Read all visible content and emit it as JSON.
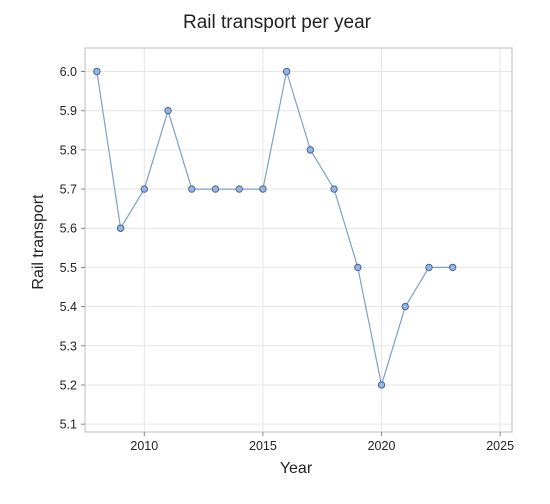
{
  "chart_data": {
    "type": "line",
    "title": "Rail transport per year",
    "xlabel": "Year",
    "ylabel": "Rail transport",
    "x": [
      2008,
      2009,
      2010,
      2011,
      2012,
      2013,
      2014,
      2015,
      2016,
      2017,
      2018,
      2019,
      2020,
      2021,
      2022,
      2023
    ],
    "series": [
      {
        "values": [
          6.0,
          5.6,
          5.7,
          5.9,
          5.7,
          5.7,
          5.7,
          5.7,
          6.0,
          5.8,
          5.7,
          5.5,
          5.2,
          5.4,
          5.5,
          5.5
        ]
      }
    ],
    "xlim": [
      2007.5,
      2025.5
    ],
    "ylim": [
      5.08,
      6.06
    ],
    "xticks": [
      2010,
      2015,
      2020,
      2025
    ],
    "yticks": [
      5.1,
      5.2,
      5.3,
      5.4,
      5.5,
      5.6,
      5.7,
      5.8,
      5.9,
      6.0
    ],
    "grid": true,
    "legend": "none",
    "colors": {
      "line": "#7f9fc9",
      "marker_fill": "#9bb4dc",
      "marker_edge": "#3e64a3"
    }
  }
}
